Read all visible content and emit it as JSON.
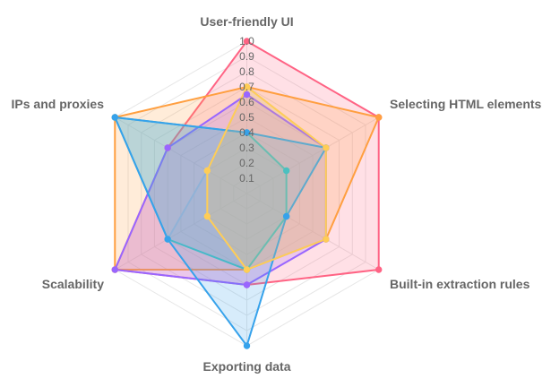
{
  "chart_data": {
    "type": "radar",
    "title": "",
    "axes": [
      "User-friendly UI",
      "Selecting HTML elements",
      "Built-in extraction rules",
      "Exporting data",
      "Scalability",
      "IPs and proxies"
    ],
    "rlim": [
      0,
      1
    ],
    "ticks": [
      "0.1",
      "0.2",
      "0.3",
      "0.4",
      "0.5",
      "0.6",
      "0.7",
      "0.8",
      "0.9",
      "1.0"
    ],
    "grid": true,
    "legend": "none",
    "series": [
      {
        "color": "#ff6384",
        "values": [
          1.0,
          1.0,
          1.0,
          0.6,
          1.0,
          0.6
        ]
      },
      {
        "color": "#ff9f40",
        "values": [
          0.7,
          1.0,
          0.6,
          0.5,
          1.0,
          1.0
        ]
      },
      {
        "color": "#c9cbcf",
        "values": [
          0.7,
          0.6,
          0.6,
          0.5,
          0.6,
          0.3
        ]
      },
      {
        "color": "#9966ff",
        "values": [
          0.65,
          0.6,
          0.6,
          0.6,
          1.0,
          0.6
        ]
      },
      {
        "color": "#4bc0c0",
        "values": [
          0.4,
          0.3,
          0.3,
          0.5,
          0.6,
          1.0
        ]
      },
      {
        "color": "#36a2eb",
        "values": [
          0.4,
          0.6,
          0.3,
          1.0,
          0.6,
          1.0
        ]
      },
      {
        "color": "#ffcd56",
        "values": [
          0.7,
          0.6,
          0.6,
          0.5,
          0.3,
          0.3
        ]
      }
    ]
  }
}
